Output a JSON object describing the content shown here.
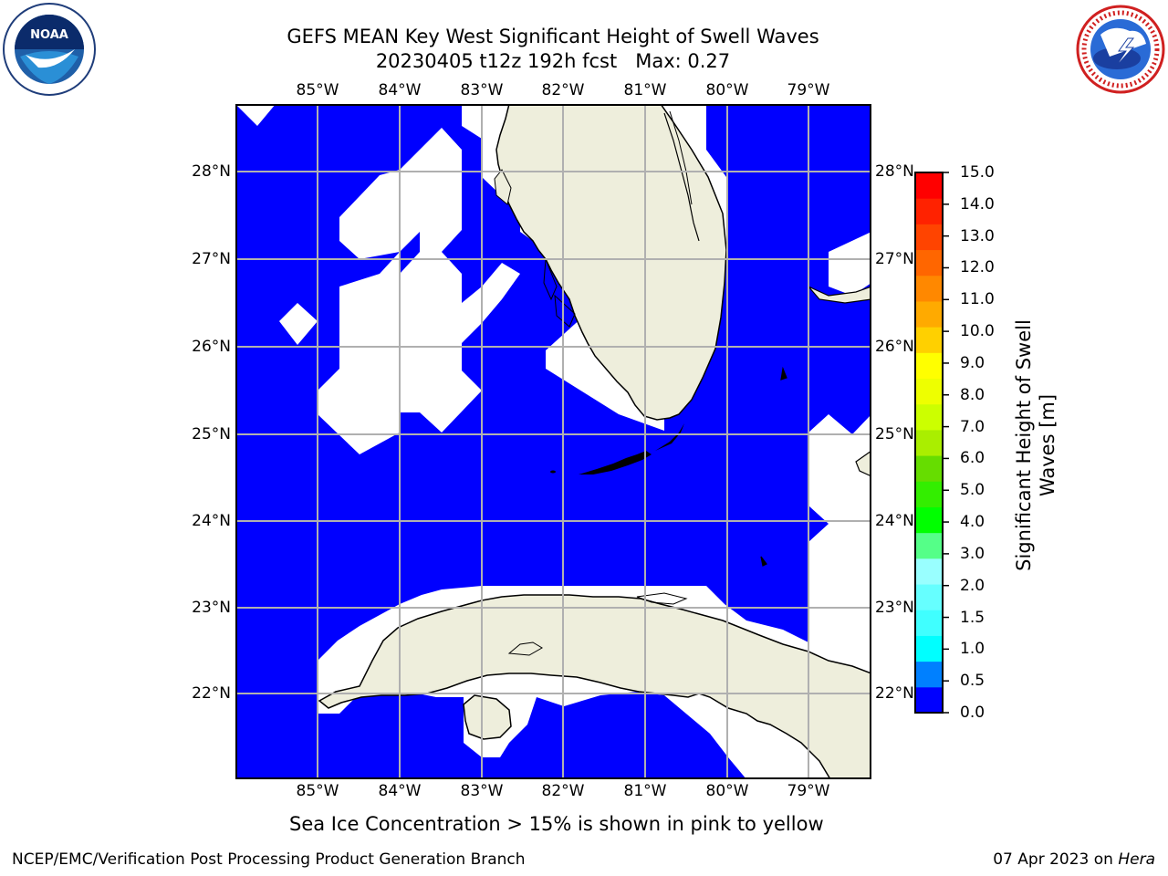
{
  "title": {
    "line1": "GEFS MEAN Key West Significant Height of Swell Waves",
    "line2": "20230405 t12z 192h fcst   Max: 0.27"
  },
  "logos": {
    "left": {
      "icon": "noaa-logo",
      "text": "NOAA",
      "ring_text": "NATIONAL OCEANIC AND ATMOSPHERIC ADMINISTRATION · U.S. DEPARTMENT OF COMMERCE"
    },
    "right": {
      "icon": "nws-logo",
      "ring_text": "NATIONAL WEATHER SERVICE"
    }
  },
  "map": {
    "lon_ticks": [
      "85°W",
      "84°W",
      "83°W",
      "82°W",
      "81°W",
      "80°W",
      "79°W"
    ],
    "lat_ticks": [
      "28°N",
      "27°N",
      "26°N",
      "25°N",
      "24°N",
      "23°N",
      "22°N"
    ],
    "colors": {
      "swell_0_0_5": "#0000ff",
      "land": "#eeeedc",
      "no_data": "#ffffff",
      "grid": "#b0b0b0"
    }
  },
  "colorbar": {
    "title_line1": "Significant Height of Swell",
    "title_line2": "Waves [m]",
    "labels": [
      "15.0",
      "14.0",
      "13.0",
      "12.0",
      "11.0",
      "10.0",
      "9.0",
      "8.0",
      "7.0",
      "6.0",
      "5.0",
      "4.0",
      "3.0",
      "2.0",
      "1.5",
      "1.0",
      "0.5",
      "0.0"
    ],
    "colors_bottom_to_top": [
      "#0000ff",
      "#0080ff",
      "#00ffff",
      "#40ffff",
      "#66ffff",
      "#99ffff",
      "#55ff88",
      "#00ff00",
      "#33ee00",
      "#66dd00",
      "#aaee00",
      "#ccff00",
      "#eeff00",
      "#ffff00",
      "#ffd000",
      "#ffaa00",
      "#ff8800",
      "#ff6600",
      "#ff4400",
      "#ff2200",
      "#ff0000"
    ]
  },
  "note": "Sea Ice Concentration > 15% is shown in pink to yellow",
  "footer": {
    "left": "NCEP/EMC/Verification Post Processing Product Generation Branch",
    "right_prefix": "07 Apr 2023 on ",
    "right_host": "Hera"
  }
}
